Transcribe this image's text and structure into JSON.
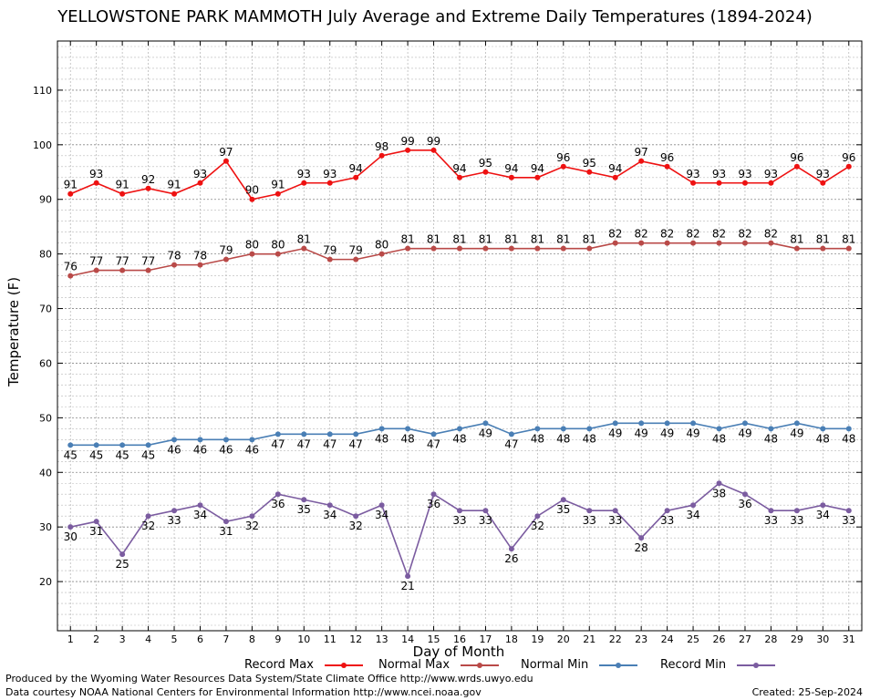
{
  "title": "YELLOWSTONE PARK MAMMOTH July Average and Extreme Daily Temperatures (1894-2024)",
  "footer": {
    "produced_by": "Produced by the Wyoming Water Resources Data System/State Climate Office http://www.wrds.uwyo.edu",
    "courtesy": "Data courtesy NOAA National Centers for Environmental Information http://www.ncei.noaa.gov",
    "created": "Created: 25-Sep-2024"
  },
  "chart_data": {
    "type": "line",
    "title": "YELLOWSTONE PARK MAMMOTH July Average and Extreme Daily Temperatures (1894-2024)",
    "xlabel": "Day of Month",
    "ylabel": "Temperature (F)",
    "x": [
      1,
      2,
      3,
      4,
      5,
      6,
      7,
      8,
      9,
      10,
      11,
      12,
      13,
      14,
      15,
      16,
      17,
      18,
      19,
      20,
      21,
      22,
      23,
      24,
      25,
      26,
      27,
      28,
      29,
      30,
      31
    ],
    "xlim": [
      0.5,
      31.5
    ],
    "ylim": [
      11,
      119
    ],
    "yticks": [
      20,
      30,
      40,
      50,
      60,
      70,
      80,
      90,
      100,
      110
    ],
    "grid": true,
    "legend": "bottom",
    "series": [
      {
        "name": "Record Max",
        "color": "#ee1111",
        "label_pos": "above",
        "values": [
          91,
          93,
          91,
          92,
          91,
          93,
          97,
          90,
          91,
          93,
          93,
          94,
          98,
          99,
          99,
          94,
          95,
          94,
          94,
          96,
          95,
          94,
          97,
          96,
          93,
          93,
          93,
          93,
          96,
          93,
          96
        ]
      },
      {
        "name": "Normal Max",
        "color": "#b94a48",
        "label_pos": "above",
        "values": [
          76,
          77,
          77,
          77,
          78,
          78,
          79,
          80,
          80,
          81,
          79,
          79,
          80,
          81,
          81,
          81,
          81,
          81,
          81,
          81,
          81,
          82,
          82,
          82,
          82,
          82,
          82,
          82,
          81,
          81,
          81
        ]
      },
      {
        "name": "Normal Min",
        "color": "#4a7fb5",
        "label_pos": "below",
        "values": [
          45,
          45,
          45,
          45,
          46,
          46,
          46,
          46,
          47,
          47,
          47,
          47,
          48,
          48,
          47,
          48,
          49,
          47,
          48,
          48,
          48,
          49,
          49,
          49,
          49,
          48,
          49,
          48,
          49,
          48,
          48
        ]
      },
      {
        "name": "Record Min",
        "color": "#7b5ca0",
        "label_pos": "below",
        "values": [
          30,
          31,
          25,
          32,
          33,
          34,
          31,
          32,
          36,
          35,
          34,
          32,
          34,
          21,
          36,
          33,
          33,
          26,
          32,
          35,
          33,
          33,
          28,
          33,
          34,
          38,
          36,
          33,
          33,
          34,
          33
        ]
      }
    ]
  }
}
